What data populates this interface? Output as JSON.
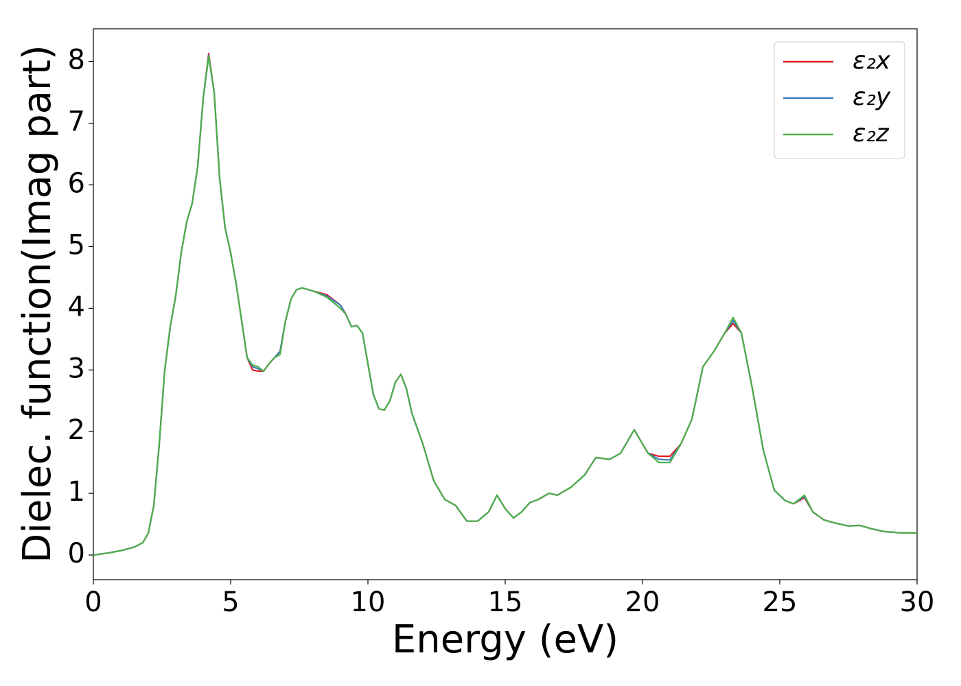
{
  "chart_data": {
    "type": "line",
    "xlabel": "Energy (eV)",
    "ylabel": "Dielec. function(Imag part)",
    "x": [
      0,
      0.5,
      1,
      1.5,
      1.8,
      2,
      2.2,
      2.4,
      2.6,
      2.8,
      3,
      3.2,
      3.4,
      3.6,
      3.8,
      4,
      4.2,
      4.4,
      4.6,
      4.8,
      5,
      5.2,
      5.4,
      5.6,
      5.8,
      6,
      6.2,
      6.4,
      6.6,
      6.8,
      7,
      7.2,
      7.4,
      7.6,
      8,
      8.5,
      9,
      9.2,
      9.4,
      9.6,
      9.8,
      10,
      10.2,
      10.4,
      10.6,
      10.8,
      11,
      11.2,
      11.4,
      11.6,
      12,
      12.4,
      12.8,
      13.2,
      13.6,
      14,
      14.4,
      14.7,
      15,
      15.3,
      15.6,
      15.9,
      16.2,
      16.6,
      16.9,
      17.4,
      17.9,
      18.3,
      18.8,
      19.2,
      19.7,
      20.2,
      20.6,
      21,
      21.4,
      21.8,
      22.2,
      22.6,
      23,
      23.3,
      23.6,
      24,
      24.4,
      24.8,
      25.2,
      25.5,
      25.9,
      26.2,
      26.6,
      27,
      27.5,
      27.9,
      28.3,
      28.8,
      29.4,
      30
    ],
    "series": [
      {
        "name": "ε₂x",
        "color": "#e41a1c",
        "values": [
          0,
          0.03,
          0.07,
          0.13,
          0.2,
          0.35,
          0.8,
          1.8,
          3.0,
          3.7,
          4.2,
          4.9,
          5.4,
          5.7,
          6.3,
          7.4,
          8.13,
          7.5,
          6.1,
          5.3,
          4.9,
          4.4,
          3.8,
          3.2,
          3.0,
          2.98,
          2.98,
          3.1,
          3.2,
          3.3,
          3.8,
          4.15,
          4.3,
          4.33,
          4.28,
          4.22,
          4.05,
          3.9,
          3.7,
          3.72,
          3.6,
          3.1,
          2.6,
          2.37,
          2.35,
          2.5,
          2.8,
          2.93,
          2.7,
          2.3,
          1.8,
          1.2,
          0.9,
          0.8,
          0.55,
          0.55,
          0.7,
          0.97,
          0.75,
          0.6,
          0.7,
          0.85,
          0.9,
          1.0,
          0.97,
          1.1,
          1.3,
          1.58,
          1.55,
          1.65,
          2.03,
          1.65,
          1.6,
          1.6,
          1.8,
          2.2,
          3.05,
          3.3,
          3.6,
          3.75,
          3.6,
          2.7,
          1.7,
          1.05,
          0.88,
          0.83,
          0.93,
          0.7,
          0.57,
          0.52,
          0.47,
          0.48,
          0.43,
          0.38,
          0.36,
          0.36
        ]
      },
      {
        "name": "ε₂y",
        "color": "#377eb8",
        "values": [
          0,
          0.03,
          0.07,
          0.13,
          0.2,
          0.35,
          0.8,
          1.8,
          3.0,
          3.7,
          4.2,
          4.9,
          5.4,
          5.7,
          6.3,
          7.4,
          8.1,
          7.5,
          6.1,
          5.3,
          4.9,
          4.4,
          3.8,
          3.2,
          3.05,
          3.02,
          2.98,
          3.1,
          3.2,
          3.3,
          3.8,
          4.15,
          4.3,
          4.33,
          4.28,
          4.2,
          4.05,
          3.9,
          3.7,
          3.72,
          3.6,
          3.1,
          2.6,
          2.37,
          2.35,
          2.5,
          2.8,
          2.93,
          2.7,
          2.3,
          1.8,
          1.2,
          0.9,
          0.8,
          0.55,
          0.55,
          0.7,
          0.97,
          0.75,
          0.6,
          0.7,
          0.85,
          0.9,
          1.0,
          0.97,
          1.1,
          1.3,
          1.58,
          1.55,
          1.65,
          2.03,
          1.65,
          1.55,
          1.54,
          1.8,
          2.2,
          3.05,
          3.3,
          3.6,
          3.8,
          3.6,
          2.7,
          1.7,
          1.05,
          0.88,
          0.83,
          0.95,
          0.7,
          0.57,
          0.52,
          0.47,
          0.48,
          0.43,
          0.38,
          0.36,
          0.36
        ]
      },
      {
        "name": "ε₂z",
        "color": "#4daf4a",
        "values": [
          0,
          0.03,
          0.07,
          0.13,
          0.2,
          0.35,
          0.8,
          1.8,
          3.0,
          3.7,
          4.2,
          4.9,
          5.4,
          5.7,
          6.3,
          7.4,
          8.08,
          7.5,
          6.1,
          5.3,
          4.9,
          4.4,
          3.8,
          3.2,
          3.08,
          3.05,
          2.98,
          3.1,
          3.2,
          3.25,
          3.8,
          4.15,
          4.3,
          4.33,
          4.28,
          4.18,
          4.0,
          3.9,
          3.7,
          3.72,
          3.6,
          3.1,
          2.6,
          2.37,
          2.35,
          2.5,
          2.8,
          2.93,
          2.7,
          2.3,
          1.8,
          1.2,
          0.9,
          0.8,
          0.55,
          0.55,
          0.7,
          0.97,
          0.75,
          0.6,
          0.7,
          0.85,
          0.9,
          1.0,
          0.97,
          1.1,
          1.3,
          1.58,
          1.55,
          1.65,
          2.03,
          1.65,
          1.5,
          1.5,
          1.8,
          2.2,
          3.05,
          3.3,
          3.6,
          3.85,
          3.6,
          2.7,
          1.7,
          1.05,
          0.88,
          0.83,
          0.97,
          0.7,
          0.57,
          0.52,
          0.47,
          0.48,
          0.43,
          0.38,
          0.36,
          0.36
        ]
      }
    ],
    "xlim": [
      0,
      30
    ],
    "xticks": [
      0,
      5,
      10,
      15,
      20,
      25,
      30
    ],
    "ylim": [
      -0.4,
      8.53
    ],
    "yticks": [
      0,
      1,
      2,
      3,
      4,
      5,
      6,
      7,
      8
    ],
    "grid": false,
    "legend": "upper right"
  }
}
